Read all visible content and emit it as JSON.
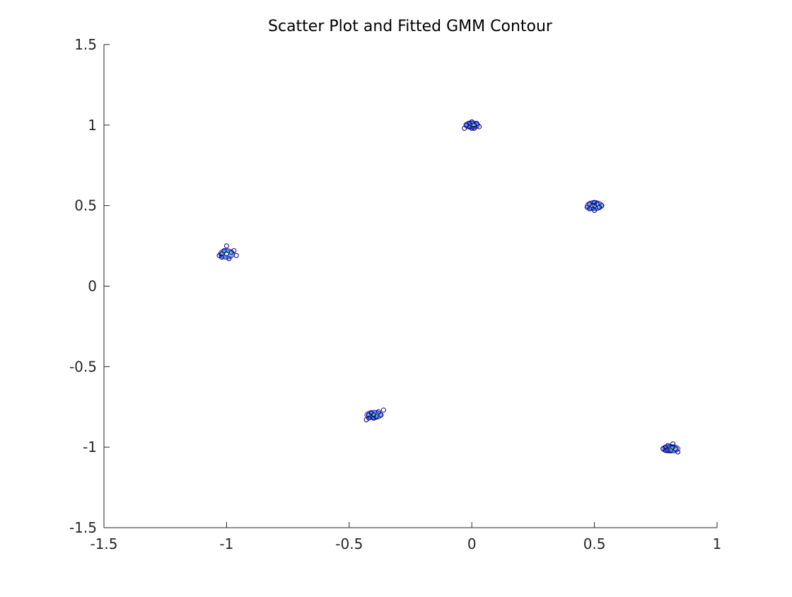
{
  "chart_data": {
    "type": "scatter",
    "title": "Scatter Plot and Fitted GMM Contour",
    "xlabel": "",
    "ylabel": "",
    "xlim": [
      -1.5,
      1
    ],
    "ylim": [
      -1.5,
      1.5
    ],
    "xticks": [
      -1.5,
      -1,
      -0.5,
      0,
      0.5,
      1
    ],
    "yticks": [
      -1.5,
      -1,
      -0.5,
      0,
      0.5,
      1,
      1.5
    ],
    "xtick_labels": [
      "-1.5",
      "-1",
      "-0.5",
      "0",
      "0.5",
      "1"
    ],
    "ytick_labels": [
      "-1.5",
      "-1",
      "-0.5",
      "0",
      "0.5",
      "1",
      "1.5"
    ],
    "grid": false,
    "series": [
      {
        "values": [
          {
            "x": -1.02,
            "y": 0.2
          },
          {
            "x": -1.0,
            "y": 0.25
          },
          {
            "x": -0.98,
            "y": 0.21
          },
          {
            "x": -1.03,
            "y": 0.19
          },
          {
            "x": -0.99,
            "y": 0.17
          },
          {
            "x": -0.96,
            "y": 0.19
          },
          {
            "x": -1.01,
            "y": 0.22
          },
          {
            "x": -1.0,
            "y": 0.2
          },
          {
            "x": -0.97,
            "y": 0.22
          },
          {
            "x": -1.02,
            "y": 0.18
          },
          {
            "x": -0.43,
            "y": -0.83
          },
          {
            "x": -0.42,
            "y": -0.8
          },
          {
            "x": -0.4,
            "y": -0.82
          },
          {
            "x": -0.38,
            "y": -0.78
          },
          {
            "x": -0.36,
            "y": -0.77
          },
          {
            "x": -0.41,
            "y": -0.79
          },
          {
            "x": -0.39,
            "y": -0.81
          },
          {
            "x": -0.37,
            "y": -0.8
          },
          {
            "x": -0.4,
            "y": -0.8
          },
          {
            "x": -0.42,
            "y": -0.82
          },
          {
            "x": -0.03,
            "y": 0.98
          },
          {
            "x": -0.01,
            "y": 1.01
          },
          {
            "x": 0.01,
            "y": 1.0
          },
          {
            "x": 0.03,
            "y": 0.99
          },
          {
            "x": 0.0,
            "y": 0.98
          },
          {
            "x": -0.02,
            "y": 1.0
          },
          {
            "x": 0.02,
            "y": 1.01
          },
          {
            "x": 0.0,
            "y": 1.02
          },
          {
            "x": -0.01,
            "y": 0.99
          },
          {
            "x": 0.01,
            "y": 0.98
          },
          {
            "x": 0.47,
            "y": 0.49
          },
          {
            "x": 0.48,
            "y": 0.51
          },
          {
            "x": 0.5,
            "y": 0.5
          },
          {
            "x": 0.52,
            "y": 0.49
          },
          {
            "x": 0.5,
            "y": 0.47
          },
          {
            "x": 0.49,
            "y": 0.5
          },
          {
            "x": 0.51,
            "y": 0.51
          },
          {
            "x": 0.53,
            "y": 0.5
          },
          {
            "x": 0.48,
            "y": 0.48
          },
          {
            "x": 0.5,
            "y": 0.52
          },
          {
            "x": 0.78,
            "y": -1.01
          },
          {
            "x": 0.8,
            "y": -0.99
          },
          {
            "x": 0.82,
            "y": -1.0
          },
          {
            "x": 0.84,
            "y": -1.03
          },
          {
            "x": 0.81,
            "y": -1.02
          },
          {
            "x": 0.79,
            "y": -1.0
          },
          {
            "x": 0.83,
            "y": -1.01
          },
          {
            "x": 0.8,
            "y": -1.02
          },
          {
            "x": 0.82,
            "y": -0.98
          },
          {
            "x": 0.79,
            "y": -1.02
          }
        ]
      }
    ],
    "contours": [
      {
        "cx": -1.0,
        "cy": 0.2,
        "sx": 0.025,
        "sy": 0.025
      },
      {
        "cx": -0.4,
        "cy": -0.8,
        "sx": 0.028,
        "sy": 0.022
      },
      {
        "cx": 0.0,
        "cy": 1.0,
        "sx": 0.025,
        "sy": 0.02
      },
      {
        "cx": 0.5,
        "cy": 0.5,
        "sx": 0.028,
        "sy": 0.024
      },
      {
        "cx": 0.81,
        "cy": -1.01,
        "sx": 0.03,
        "sy": 0.02
      }
    ],
    "contour_levels": 6,
    "colors": {
      "points": "#000080",
      "axes": "#262626",
      "contour_colormap": [
        "#3e26a8",
        "#4850f2",
        "#2a84fb",
        "#16b3d6",
        "#38cb8c",
        "#a7c83a"
      ]
    }
  }
}
